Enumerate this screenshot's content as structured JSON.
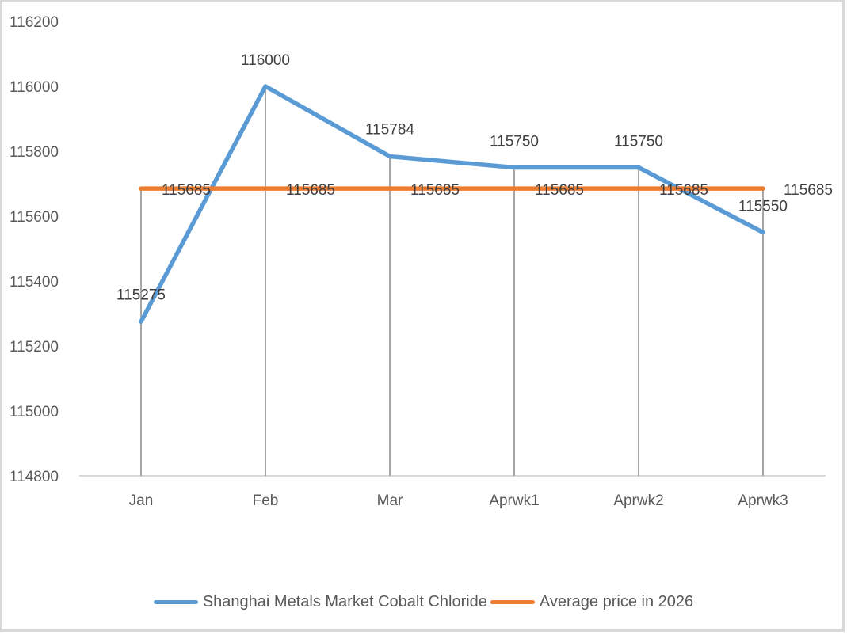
{
  "chart_data": {
    "type": "line",
    "title": "",
    "xlabel": "",
    "ylabel": "",
    "categories": [
      "Jan",
      "Feb",
      "Mar",
      "Aprwk1",
      "Aprwk2",
      "Aprwk3"
    ],
    "series": [
      {
        "name": "Shanghai Metals Market Cobalt Chloride",
        "color": "#5b9bd5",
        "values": [
          115275,
          116000,
          115784,
          115750,
          115750,
          115550
        ]
      },
      {
        "name": "Average price in 2026",
        "color": "#ed7d31",
        "values": [
          115685,
          115685,
          115685,
          115685,
          115685,
          115685
        ]
      }
    ],
    "ylim": [
      114800,
      116200
    ],
    "yticks": [
      114800,
      115000,
      115200,
      115400,
      115600,
      115800,
      116000,
      116200
    ],
    "ytick_labels": [
      "114800",
      "115000",
      "115200",
      "115400",
      "115600",
      "115800",
      "116000",
      "116200"
    ],
    "grid": "vertical drop lines at each category",
    "legend_position": "bottom",
    "data_labels": true
  },
  "legend": {
    "series1": "Shanghai Metals Market Cobalt Chloride",
    "series2": "Average price in 2026"
  }
}
